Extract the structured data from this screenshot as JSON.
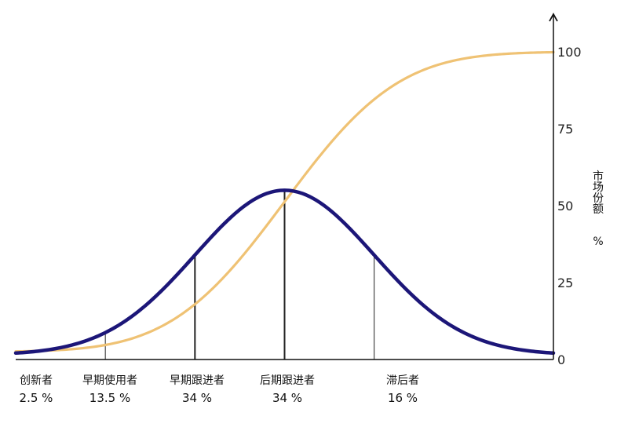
{
  "chart_data": {
    "type": "line",
    "title": "",
    "y_axis": {
      "label_chars": [
        "市",
        "场",
        "份",
        "额"
      ],
      "unit": "%",
      "ticks": [
        0,
        25,
        50,
        75,
        100
      ],
      "tick_labels": [
        "0",
        "25",
        "50",
        "75",
        "100"
      ],
      "ylim": [
        0,
        100
      ],
      "position": "right"
    },
    "x_axis": {
      "range": [
        -3.0,
        3.0
      ],
      "labels": []
    },
    "colors": {
      "adoption_curve": "#1c1678",
      "market_share_curve": "#efc274",
      "axis": "#111111",
      "divider": "#222222"
    },
    "series": [
      {
        "key": "adoption_curve",
        "shape": "bell",
        "mean": 0.0,
        "sd": 1.0,
        "peak": 55,
        "baseline": 1.5
      },
      {
        "key": "market_share_curve",
        "shape": "cumulative",
        "mean": 0.0,
        "sd": 1.0,
        "min": 2.5,
        "max": 100
      }
    ],
    "segments": [
      {
        "name": "创新者",
        "percent_label": "2.5 %",
        "boundary_sd": -2.0
      },
      {
        "name": "早期使用者",
        "percent_label": "13.5 %",
        "boundary_sd": -1.0
      },
      {
        "name": "早期跟进者",
        "percent_label": "34 %",
        "boundary_sd": 0.0
      },
      {
        "name": "后期跟进者",
        "percent_label": "34 %",
        "boundary_sd": 1.0
      },
      {
        "name": "滞后者",
        "percent_label": "16 %",
        "boundary_sd": null
      }
    ]
  }
}
